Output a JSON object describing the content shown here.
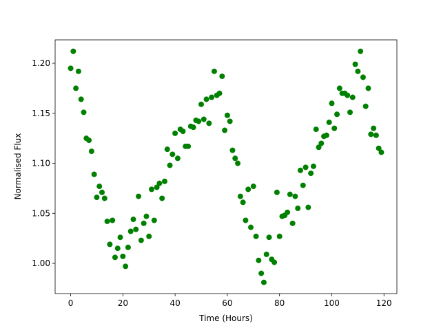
{
  "chart_data": {
    "type": "scatter",
    "xlabel": "Time (Hours)",
    "ylabel": "Normalised Flux",
    "x": [
      0,
      1,
      2,
      3,
      4,
      5,
      6,
      7,
      8,
      9,
      10,
      11,
      12,
      13,
      14,
      15,
      16,
      17,
      18,
      19,
      20,
      21,
      22,
      23,
      24,
      25,
      26,
      27,
      28,
      29,
      30,
      31,
      32,
      33,
      34,
      35,
      36,
      37,
      38,
      39,
      40,
      41,
      42,
      43,
      44,
      45,
      46,
      47,
      48,
      49,
      50,
      51,
      52,
      53,
      54,
      55,
      56,
      57,
      58,
      59,
      60,
      61,
      62,
      63,
      64,
      65,
      66,
      67,
      68,
      69,
      70,
      71,
      72,
      73,
      74,
      75,
      76,
      77,
      78,
      79,
      80,
      81,
      82,
      83,
      84,
      85,
      86,
      87,
      88,
      89,
      90,
      91,
      92,
      93,
      94,
      95,
      96,
      97,
      98,
      99,
      100,
      101,
      102,
      103,
      104,
      105,
      106,
      107,
      108,
      109,
      110,
      111,
      112,
      113,
      114,
      115,
      116,
      117,
      118,
      119
    ],
    "series": [
      {
        "color": "#008000",
        "values": [
          1.195,
          1.212,
          1.175,
          1.192,
          1.164,
          1.151,
          1.125,
          1.123,
          1.112,
          1.089,
          1.066,
          1.077,
          1.071,
          1.065,
          1.042,
          1.019,
          1.043,
          1.006,
          1.015,
          1.026,
          1.007,
          0.997,
          1.016,
          1.032,
          1.044,
          1.034,
          1.067,
          1.023,
          1.04,
          1.047,
          1.027,
          1.074,
          1.043,
          1.076,
          1.08,
          1.065,
          1.082,
          1.114,
          1.098,
          1.109,
          1.13,
          1.105,
          1.134,
          1.132,
          1.117,
          1.117,
          1.137,
          1.136,
          1.143,
          1.142,
          1.159,
          1.144,
          1.164,
          1.14,
          1.166,
          1.192,
          1.168,
          1.17,
          1.187,
          1.133,
          1.148,
          1.142,
          1.113,
          1.105,
          1.1,
          1.067,
          1.061,
          1.043,
          1.074,
          1.036,
          1.077,
          1.027,
          1.003,
          0.99,
          0.981,
          1.009,
          1.026,
          1.004,
          1.001,
          1.071,
          1.027,
          1.047,
          1.048,
          1.051,
          1.069,
          1.04,
          1.067,
          1.055,
          1.093,
          1.078,
          1.096,
          1.056,
          1.09,
          1.097,
          1.134,
          1.116,
          1.12,
          1.127,
          1.128,
          1.141,
          1.16,
          1.135,
          1.149,
          1.175,
          1.17,
          1.17,
          1.168,
          1.151,
          1.166,
          1.199,
          1.192,
          1.212,
          1.186,
          1.157,
          1.175,
          1.129,
          1.135,
          1.128,
          1.115,
          1.111
        ]
      }
    ],
    "xlim": [
      -5.95,
      124.95
    ],
    "ylim": [
      0.9698,
      1.2234
    ],
    "xticks": [
      0,
      20,
      40,
      60,
      80,
      100,
      120
    ],
    "yticks": [
      {
        "value": 1.0,
        "label": "1.00"
      },
      {
        "value": 1.05,
        "label": "1.05"
      },
      {
        "value": 1.1,
        "label": "1.10"
      },
      {
        "value": 1.15,
        "label": "1.15"
      },
      {
        "value": 1.2,
        "label": "1.20"
      }
    ],
    "grid": false
  }
}
